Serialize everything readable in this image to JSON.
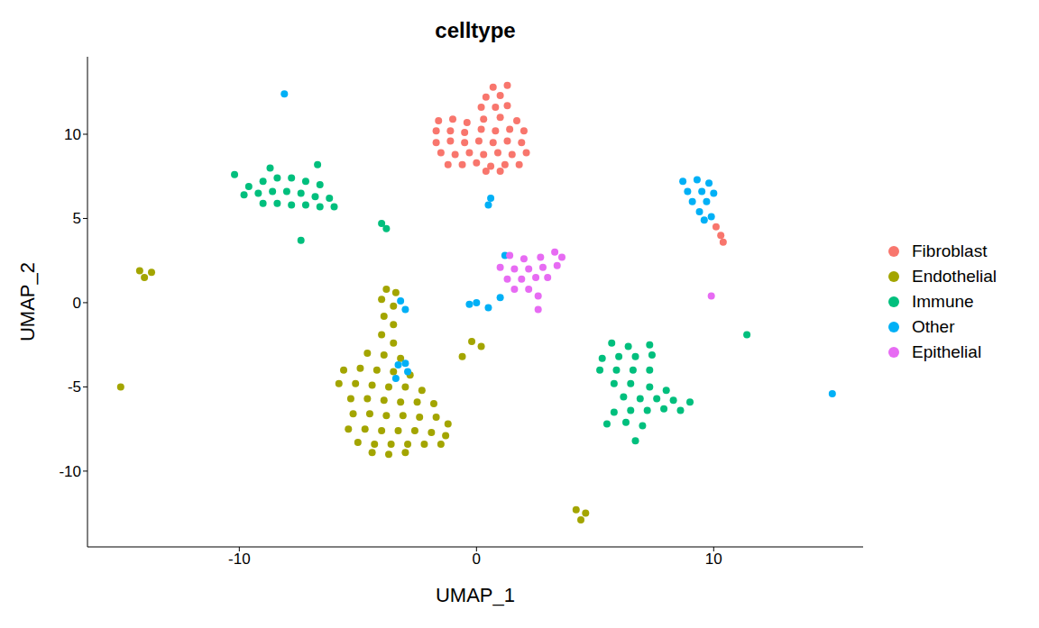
{
  "chart_data": {
    "type": "scatter",
    "title": "celltype",
    "x_label": "UMAP_1",
    "y_label": "UMAP_2",
    "xlim": [
      -16.4,
      16.3
    ],
    "xticks": [
      -10,
      0,
      10
    ],
    "ylim": [
      -14.5,
      14.6
    ],
    "yticks": [
      -10,
      -5,
      0,
      5,
      10
    ],
    "grid": false,
    "legend": "right",
    "marker": "circle",
    "series": [
      {
        "name": "Fibroblast",
        "color": "#F8766D",
        "x": [
          -1.6,
          -1.0,
          -0.4,
          0.3,
          1.0,
          1.7,
          -1.7,
          -1.1,
          -0.5,
          0.2,
          0.8,
          1.4,
          2.0,
          -1.7,
          -1.1,
          -0.5,
          0.1,
          0.7,
          1.3,
          1.9,
          -1.5,
          -0.9,
          -0.3,
          0.3,
          0.9,
          1.5,
          2.1,
          -1.2,
          -0.6,
          0.0,
          0.6,
          1.2,
          1.8,
          0.4,
          1.0,
          0.2,
          0.8,
          1.3,
          0.4,
          1.0,
          0.7,
          1.3,
          10.1,
          10.3,
          10.4
        ],
        "values": [
          10.8,
          10.9,
          10.7,
          10.9,
          11.0,
          10.8,
          10.2,
          10.2,
          10.1,
          10.3,
          10.2,
          10.3,
          10.2,
          9.5,
          9.6,
          9.5,
          9.6,
          9.5,
          9.6,
          9.5,
          8.9,
          8.8,
          8.9,
          8.8,
          8.9,
          8.8,
          8.9,
          8.2,
          8.2,
          8.3,
          8.1,
          8.2,
          8.2,
          7.8,
          7.8,
          11.6,
          11.6,
          11.7,
          12.2,
          12.3,
          12.8,
          12.9,
          4.5,
          4.0,
          3.6
        ]
      },
      {
        "name": "Endothelial",
        "color": "#A3A500",
        "x": [
          -3.8,
          -3.4,
          -4.0,
          -3.5,
          -3.9,
          -3.5,
          -4.0,
          -3.5,
          -4.6,
          -3.9,
          -3.2,
          -5.6,
          -4.9,
          -4.2,
          -3.5,
          -2.8,
          -5.8,
          -5.1,
          -4.4,
          -3.7,
          -3.0,
          -2.3,
          -5.3,
          -4.6,
          -3.9,
          -3.2,
          -2.5,
          -1.8,
          -5.2,
          -4.5,
          -3.8,
          -3.1,
          -2.4,
          -1.7,
          -1.2,
          -5.4,
          -4.7,
          -4.0,
          -3.3,
          -2.6,
          -1.9,
          -1.3,
          -5.0,
          -4.3,
          -3.6,
          -2.9,
          -2.2,
          -1.5,
          -4.4,
          -3.7,
          -3.0,
          -0.2,
          0.2,
          -0.6,
          -14.2,
          -13.7,
          -14.0,
          4.2,
          4.6,
          4.4,
          -15.0
        ],
        "values": [
          0.8,
          0.6,
          0.2,
          -0.2,
          -0.8,
          -1.3,
          -1.9,
          -2.4,
          -3.0,
          -3.1,
          -3.3,
          -4.0,
          -3.9,
          -4.0,
          -4.1,
          -4.3,
          -4.8,
          -4.8,
          -4.9,
          -5.0,
          -5.0,
          -5.2,
          -5.7,
          -5.7,
          -5.8,
          -5.9,
          -5.9,
          -6.0,
          -6.6,
          -6.6,
          -6.7,
          -6.7,
          -6.8,
          -6.8,
          -7.2,
          -7.5,
          -7.5,
          -7.6,
          -7.6,
          -7.6,
          -7.7,
          -7.9,
          -8.3,
          -8.4,
          -8.4,
          -8.4,
          -8.4,
          -8.4,
          -8.9,
          -9.0,
          -8.9,
          -2.3,
          -2.6,
          -3.2,
          1.9,
          1.8,
          1.5,
          -12.3,
          -12.5,
          -12.9,
          -5.0
        ]
      },
      {
        "name": "Immune",
        "color": "#00BF7D",
        "x": [
          -10.2,
          -9.6,
          -9.0,
          -8.4,
          -7.8,
          -7.2,
          -6.6,
          -9.8,
          -9.2,
          -8.6,
          -8.0,
          -7.4,
          -6.8,
          -6.2,
          -9.0,
          -8.4,
          -7.8,
          -7.2,
          -6.6,
          -6.0,
          -6.7,
          -8.7,
          -7.4,
          -4.0,
          -3.8,
          5.7,
          6.4,
          7.3,
          5.3,
          6.0,
          6.7,
          7.4,
          5.2,
          5.9,
          6.6,
          7.3,
          5.8,
          6.5,
          7.3,
          8.0,
          6.2,
          6.9,
          7.6,
          8.3,
          9.0,
          5.8,
          6.5,
          7.2,
          7.9,
          8.6,
          5.5,
          6.3,
          7.0,
          6.7,
          11.4
        ],
        "values": [
          7.6,
          6.9,
          7.2,
          7.4,
          7.4,
          7.2,
          7.0,
          6.4,
          6.5,
          6.6,
          6.6,
          6.5,
          6.3,
          6.2,
          5.9,
          5.9,
          5.8,
          5.8,
          5.7,
          5.7,
          8.2,
          8.0,
          3.7,
          4.7,
          4.4,
          -2.4,
          -2.6,
          -2.5,
          -3.3,
          -3.2,
          -3.2,
          -3.1,
          -4.0,
          -4.0,
          -4.0,
          -4.0,
          -4.8,
          -4.8,
          -5.0,
          -5.2,
          -5.6,
          -5.7,
          -5.7,
          -5.8,
          -5.9,
          -6.5,
          -6.4,
          -6.4,
          -6.3,
          -6.4,
          -7.2,
          -7.1,
          -7.3,
          -8.2,
          -1.9
        ]
      },
      {
        "name": "Other",
        "color": "#00B0F6",
        "x": [
          8.7,
          9.3,
          9.8,
          8.9,
          9.5,
          10.0,
          9.1,
          9.7,
          9.4,
          9.9,
          9.6,
          0.6,
          0.5,
          -8.1,
          -3.3,
          -2.9,
          -3.4,
          -3.0,
          -3.2,
          -3.0,
          0.0,
          0.5,
          -0.3,
          1.0,
          15.0,
          1.2
        ],
        "values": [
          7.2,
          7.3,
          7.1,
          6.6,
          6.6,
          6.5,
          6.0,
          6.0,
          5.4,
          5.1,
          4.9,
          6.2,
          5.8,
          12.4,
          -3.7,
          -4.1,
          -4.5,
          -3.6,
          0.1,
          -0.4,
          0.0,
          -0.3,
          -0.1,
          0.3,
          -5.4,
          2.8
        ]
      },
      {
        "name": "Epithelial",
        "color": "#E76BF3",
        "x": [
          1.4,
          2.0,
          2.7,
          3.3,
          3.6,
          1.0,
          1.6,
          2.2,
          2.8,
          3.4,
          1.3,
          1.9,
          2.5,
          3.0,
          1.6,
          2.2,
          2.6,
          2.6,
          9.9
        ],
        "values": [
          2.8,
          2.6,
          2.7,
          3.0,
          2.7,
          2.1,
          2.0,
          2.0,
          2.1,
          2.2,
          1.4,
          1.4,
          1.5,
          1.5,
          0.8,
          0.8,
          0.4,
          -0.4,
          0.4
        ]
      }
    ]
  }
}
